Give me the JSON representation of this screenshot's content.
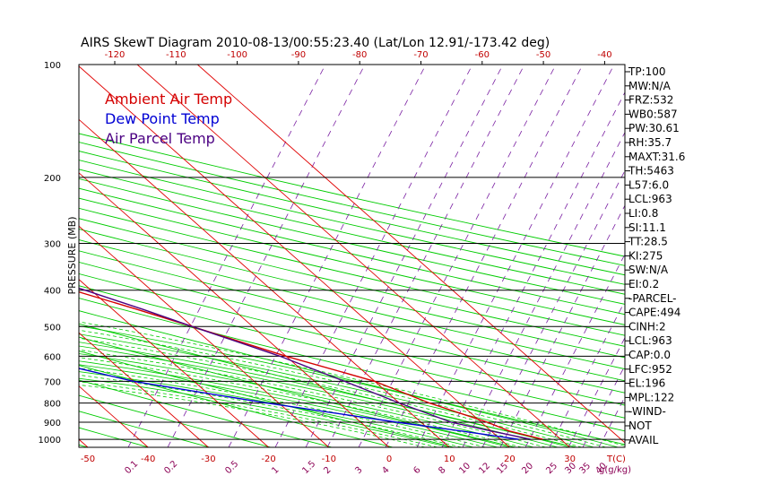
{
  "chart_data": {
    "type": "line",
    "title": "AIRS SkewT Diagram 2010-08-13/00:55:23.40 (Lat/Lon 12.91/-173.42 deg)",
    "ylabel": "PRESSURE (MB)",
    "xlabel": "T(C)",
    "mixing_label": "g(g/kg)",
    "pressure_ticks": [
      100,
      200,
      300,
      400,
      500,
      600,
      700,
      800,
      900,
      1000
    ],
    "bottom_temp_ticks": [
      -50,
      -40,
      -30,
      -20,
      -10,
      0,
      10,
      20,
      30
    ],
    "top_temp_ticks": [
      -120,
      -110,
      -100,
      -90,
      -80,
      -70,
      -60,
      -50,
      -40
    ],
    "mixing_ratio_ticks": [
      "0.1",
      "0.2",
      "0.5",
      "1",
      "1.5",
      "2",
      "3",
      "4",
      "6",
      "8",
      "10",
      "12",
      "15",
      "20",
      "25",
      "30",
      "35",
      "40"
    ],
    "legend": [
      {
        "name": "Ambient Air Temp",
        "color": "#d40000"
      },
      {
        "name": "Dew Point Temp",
        "color": "#0000d4"
      },
      {
        "name": "Air Parcel Temp",
        "color": "#4b0082"
      }
    ],
    "series": [
      {
        "name": "Ambient Air Temp",
        "color": "#d40000",
        "points": [
          [
            100,
            -80
          ],
          [
            150,
            -78
          ],
          [
            200,
            -65
          ],
          [
            250,
            -52
          ],
          [
            300,
            -42
          ],
          [
            350,
            -32
          ],
          [
            400,
            -23
          ],
          [
            450,
            -16
          ],
          [
            500,
            -10
          ],
          [
            600,
            0
          ],
          [
            700,
            10
          ],
          [
            800,
            15
          ],
          [
            900,
            21
          ],
          [
            950,
            23
          ],
          [
            1000,
            27
          ]
        ]
      },
      {
        "name": "Dew Point Temp",
        "color": "#0000d4",
        "points": [
          [
            100,
            -84
          ],
          [
            150,
            -81
          ],
          [
            200,
            -78
          ],
          [
            250,
            -73
          ],
          [
            300,
            -80
          ],
          [
            350,
            -81
          ],
          [
            400,
            -78
          ],
          [
            500,
            -62
          ],
          [
            600,
            -43
          ],
          [
            700,
            -30
          ],
          [
            800,
            -12
          ],
          [
            900,
            6
          ],
          [
            950,
            15
          ],
          [
            1000,
            23
          ]
        ]
      },
      {
        "name": "Air Parcel Temp",
        "color": "#4b0082",
        "points": [
          [
            100,
            -101
          ],
          [
            150,
            -83
          ],
          [
            200,
            -66
          ],
          [
            250,
            -50
          ],
          [
            300,
            -38
          ],
          [
            350,
            -28
          ],
          [
            400,
            -21
          ],
          [
            450,
            -15
          ],
          [
            500,
            -10
          ],
          [
            600,
            -1
          ],
          [
            700,
            5
          ],
          [
            800,
            10
          ],
          [
            900,
            15
          ],
          [
            950,
            20
          ],
          [
            1000,
            25
          ]
        ]
      }
    ]
  },
  "indices": [
    "TP:100",
    "MW:N/A",
    "FRZ:532",
    "WB0:587",
    "PW:30.61",
    "RH:35.7",
    "MAXT:31.6",
    "TH:5463",
    "L57:6.0",
    "LCL:963",
    "LI:0.8",
    "SI:11.1",
    "TT:28.5",
    "KI:275",
    "SW:N/A",
    "EI:0.2",
    "-PARCEL-",
    "CAPE:494",
    "CINH:2",
    "LCL:963",
    "CAP:0.0",
    "LFC:952",
    "EL:196",
    "MPL:122",
    "-WIND-",
    "NOT",
    "AVAIL"
  ]
}
